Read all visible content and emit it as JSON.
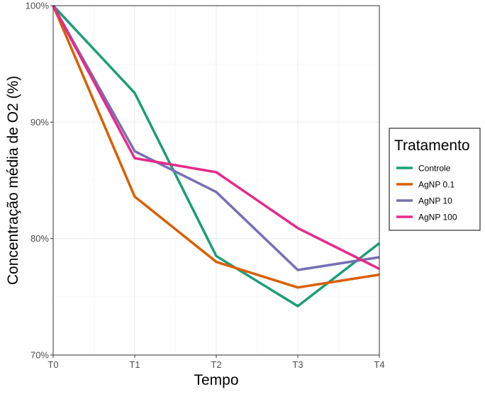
{
  "chart_data": {
    "type": "line",
    "title": "",
    "xlabel": "Tempo",
    "ylabel": "Concentração média de O2 (%)",
    "categories": [
      "T0",
      "T1",
      "T2",
      "T3",
      "T4"
    ],
    "ylim": [
      70,
      100
    ],
    "yticks": [
      70,
      80,
      90,
      100
    ],
    "ytick_labels": [
      "70%",
      "80%",
      "90%",
      "100%"
    ],
    "grid": true,
    "legend": {
      "title": "Tratamento",
      "placement": "right"
    },
    "series": [
      {
        "name": "Controle",
        "color": "#1b9e77",
        "values": [
          100,
          92.5,
          78.5,
          74.2,
          79.6
        ]
      },
      {
        "name": "AgNP 0.1",
        "color": "#d95f02",
        "values": [
          100,
          83.6,
          78.0,
          75.8,
          76.9
        ]
      },
      {
        "name": "AgNP 10",
        "color": "#7570b3",
        "values": [
          100,
          87.5,
          84.0,
          77.3,
          78.4
        ]
      },
      {
        "name": "AgNP 100",
        "color": "#e7298a",
        "values": [
          100,
          86.9,
          85.7,
          80.9,
          77.4
        ]
      }
    ]
  }
}
